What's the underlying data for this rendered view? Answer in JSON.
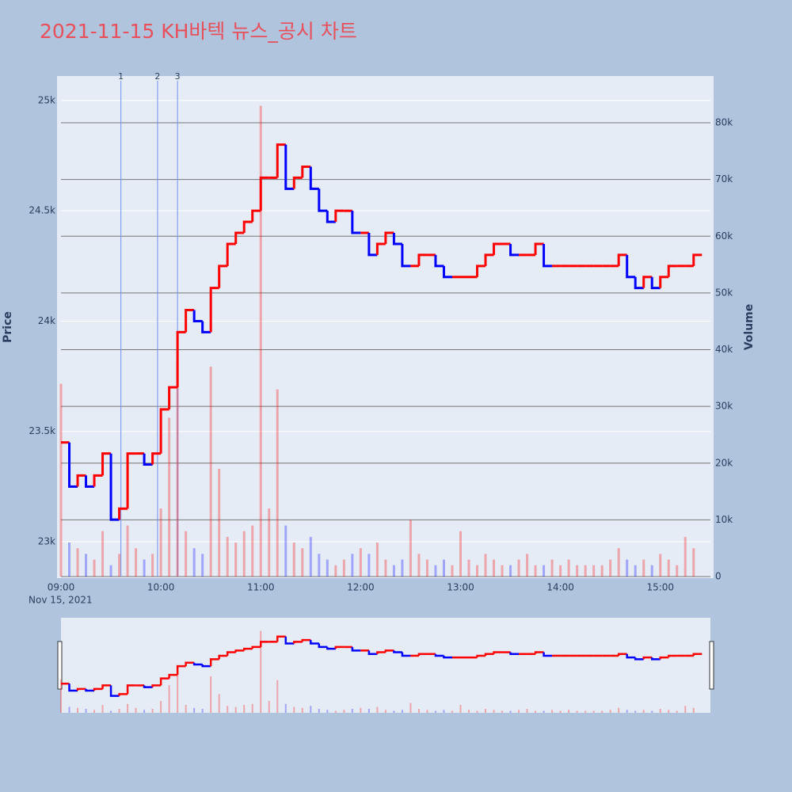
{
  "chart_data": {
    "type": "price-volume",
    "title": "2021-11-15 KH바텍 뉴스_공시 차트",
    "y_label": "Price",
    "y2_label": "Volume",
    "x_date_label": "Nov 15, 2021",
    "up_color": "#ff0000",
    "down_color": "#0000ff",
    "xlim": [
      "09:00",
      "15:32"
    ],
    "xticks": [
      "09:00",
      "10:00",
      "11:00",
      "12:00",
      "13:00",
      "14:00",
      "15:00"
    ],
    "ylim": [
      22842,
      25111
    ],
    "yticks": [
      {
        "value": 23000,
        "label": "23k"
      },
      {
        "value": 23500,
        "label": "23.5k"
      },
      {
        "value": 24000,
        "label": "24k"
      },
      {
        "value": 24500,
        "label": "24.5k"
      },
      {
        "value": 25000,
        "label": "25k"
      }
    ],
    "y2lim": [
      0,
      88240
    ],
    "y2ticks": [
      0,
      {
        "value": 10000,
        "label": "10k"
      },
      {
        "value": 20000,
        "label": "20k"
      },
      {
        "value": 30000,
        "label": "30k"
      },
      {
        "value": 40000,
        "label": "40k"
      },
      {
        "value": 50000,
        "label": "50k"
      },
      {
        "value": 60000,
        "label": "60k"
      },
      {
        "value": 70000,
        "label": "70k"
      },
      {
        "value": 80000,
        "label": "80k"
      }
    ],
    "markers": [
      {
        "x": "09:36",
        "label": "1"
      },
      {
        "x": "09:58",
        "label": "2"
      },
      {
        "x": "10:10",
        "label": "3"
      }
    ],
    "x": [
      "09:00",
      "09:05",
      "09:10",
      "09:15",
      "09:20",
      "09:25",
      "09:30",
      "09:35",
      "09:40",
      "09:45",
      "09:50",
      "09:55",
      "10:00",
      "10:05",
      "10:10",
      "10:15",
      "10:20",
      "10:25",
      "10:30",
      "10:35",
      "10:40",
      "10:45",
      "10:50",
      "10:55",
      "11:00",
      "11:05",
      "11:10",
      "11:15",
      "11:20",
      "11:25",
      "11:30",
      "11:35",
      "11:40",
      "11:45",
      "11:50",
      "11:55",
      "12:00",
      "12:05",
      "12:10",
      "12:15",
      "12:20",
      "12:25",
      "12:30",
      "12:35",
      "12:40",
      "12:45",
      "12:50",
      "12:55",
      "13:00",
      "13:05",
      "13:10",
      "13:15",
      "13:20",
      "13:25",
      "13:30",
      "13:35",
      "13:40",
      "13:45",
      "13:50",
      "13:55",
      "14:00",
      "14:05",
      "14:10",
      "14:15",
      "14:20",
      "14:25",
      "14:30",
      "14:35",
      "14:40",
      "14:45",
      "14:50",
      "14:55",
      "15:00",
      "15:05",
      "15:10",
      "15:15",
      "15:20"
    ],
    "series": [
      {
        "name": "Price",
        "axis": "y",
        "values": [
          23450,
          23250,
          23300,
          23250,
          23300,
          23400,
          23100,
          23150,
          23400,
          23400,
          23350,
          23400,
          23600,
          23700,
          23950,
          24050,
          24000,
          23950,
          24150,
          24250,
          24350,
          24400,
          24450,
          24500,
          24650,
          24650,
          24800,
          24600,
          24650,
          24700,
          24600,
          24500,
          24450,
          24500,
          24500,
          24400,
          24400,
          24300,
          24350,
          24400,
          24350,
          24250,
          24250,
          24300,
          24300,
          24250,
          24200,
          24200,
          24200,
          24200,
          24250,
          24300,
          24350,
          24350,
          24300,
          24300,
          24300,
          24350,
          24250,
          24250,
          24250,
          24250,
          24250,
          24250,
          24250,
          24250,
          24250,
          24300,
          24200,
          24150,
          24200,
          24150,
          24200,
          24250,
          24250,
          24250,
          24300
        ]
      },
      {
        "name": "Volume",
        "axis": "y2",
        "values": [
          34000,
          6000,
          5000,
          4000,
          3000,
          8000,
          2000,
          4000,
          9000,
          5000,
          3000,
          4000,
          12000,
          28000,
          38000,
          8000,
          5000,
          4000,
          37000,
          19000,
          7000,
          6000,
          8000,
          9000,
          83000,
          12000,
          33000,
          9000,
          6000,
          5000,
          7000,
          4000,
          3000,
          2000,
          3000,
          4000,
          5000,
          4000,
          6000,
          3000,
          2000,
          3000,
          10000,
          4000,
          3000,
          2000,
          3000,
          2000,
          8000,
          3000,
          2000,
          4000,
          3000,
          2000,
          2000,
          3000,
          4000,
          2000,
          2000,
          3000,
          2000,
          3000,
          2000,
          2000,
          2000,
          2000,
          3000,
          5000,
          3000,
          2000,
          3000,
          2000,
          4000,
          3000,
          2000,
          7000,
          5000
        ]
      }
    ]
  }
}
